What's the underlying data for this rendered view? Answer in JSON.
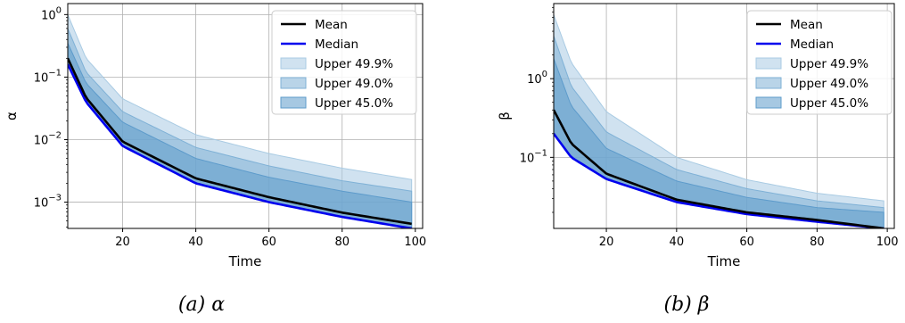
{
  "chart_data": [
    {
      "type": "area",
      "panel": "a",
      "caption": "(a) α",
      "xlabel": "Time",
      "ylabel": "α",
      "xlim": [
        5,
        102
      ],
      "ylim": [
        0.00038,
        1.5
      ],
      "yscale": "log",
      "grid": true,
      "legend_position": "top-right",
      "xticks": [
        "20",
        "40",
        "60",
        "80",
        "100"
      ],
      "yticks": [
        {
          "base": "10",
          "exp": "0",
          "value": 1
        },
        {
          "base": "10",
          "exp": "−1",
          "value": 0.1
        },
        {
          "base": "10",
          "exp": "−2",
          "value": 0.01
        },
        {
          "base": "10",
          "exp": "−3",
          "value": 0.001
        }
      ],
      "x": [
        5,
        10,
        20,
        40,
        60,
        80,
        99
      ],
      "series": [
        {
          "name": "Mean",
          "kind": "line",
          "color": "#000000",
          "values": [
            0.2,
            0.047,
            0.0093,
            0.0024,
            0.0012,
            0.00068,
            0.00045
          ]
        },
        {
          "name": "Median",
          "kind": "line",
          "color": "#0000ee",
          "values": [
            0.16,
            0.04,
            0.0079,
            0.002,
            0.001,
            0.00058,
            0.00038
          ]
        },
        {
          "name": "Upper 49.9%",
          "kind": "band",
          "color": "#a9cbe3",
          "lower": [
            0.16,
            0.04,
            0.0079,
            0.002,
            0.001,
            0.00058,
            0.00038
          ],
          "upper": [
            1.0,
            0.2,
            0.045,
            0.012,
            0.006,
            0.0035,
            0.0023
          ]
        },
        {
          "name": "Upper 49.0%",
          "kind": "band",
          "color": "#7fb1d6",
          "lower": [
            0.16,
            0.04,
            0.0079,
            0.002,
            0.001,
            0.00058,
            0.00038
          ],
          "upper": [
            0.6,
            0.12,
            0.028,
            0.0075,
            0.0038,
            0.0022,
            0.0015
          ]
        },
        {
          "name": "Upper 45.0%",
          "kind": "band",
          "color": "#5d9bcb",
          "lower": [
            0.16,
            0.04,
            0.0079,
            0.002,
            0.001,
            0.00058,
            0.00038
          ],
          "upper": [
            0.35,
            0.08,
            0.019,
            0.005,
            0.0025,
            0.0015,
            0.001
          ]
        }
      ]
    },
    {
      "type": "area",
      "panel": "b",
      "caption": "(b) β",
      "xlabel": "Time",
      "ylabel": "β",
      "xlim": [
        5,
        102
      ],
      "ylim": [
        0.0125,
        9
      ],
      "yscale": "log",
      "grid": true,
      "legend_position": "top-right",
      "xticks": [
        "20",
        "40",
        "60",
        "80",
        "100"
      ],
      "yticks": [
        {
          "base": "10",
          "exp": "0",
          "value": 1
        },
        {
          "base": "10",
          "exp": "−1",
          "value": 0.1
        }
      ],
      "x": [
        5,
        10,
        20,
        40,
        60,
        80,
        99
      ],
      "series": [
        {
          "name": "Mean",
          "kind": "line",
          "color": "#000000",
          "values": [
            0.4,
            0.15,
            0.062,
            0.029,
            0.02,
            0.016,
            0.0125
          ]
        },
        {
          "name": "Median",
          "kind": "line",
          "color": "#0000ee",
          "values": [
            0.2,
            0.1,
            0.053,
            0.027,
            0.019,
            0.0152,
            0.0125
          ]
        },
        {
          "name": "Upper 49.9%",
          "kind": "band",
          "color": "#a9cbe3",
          "lower": [
            0.2,
            0.1,
            0.053,
            0.027,
            0.019,
            0.0152,
            0.0125
          ],
          "upper": [
            6.5,
            1.6,
            0.38,
            0.1,
            0.052,
            0.035,
            0.028
          ]
        },
        {
          "name": "Upper 49.0%",
          "kind": "band",
          "color": "#7fb1d6",
          "lower": [
            0.2,
            0.1,
            0.053,
            0.027,
            0.019,
            0.0152,
            0.0125
          ],
          "upper": [
            3.5,
            0.8,
            0.21,
            0.07,
            0.04,
            0.028,
            0.023
          ]
        },
        {
          "name": "Upper 45.0%",
          "kind": "band",
          "color": "#5d9bcb",
          "lower": [
            0.2,
            0.1,
            0.053,
            0.027,
            0.019,
            0.0152,
            0.0125
          ],
          "upper": [
            1.8,
            0.45,
            0.13,
            0.05,
            0.031,
            0.023,
            0.02
          ]
        }
      ]
    }
  ]
}
